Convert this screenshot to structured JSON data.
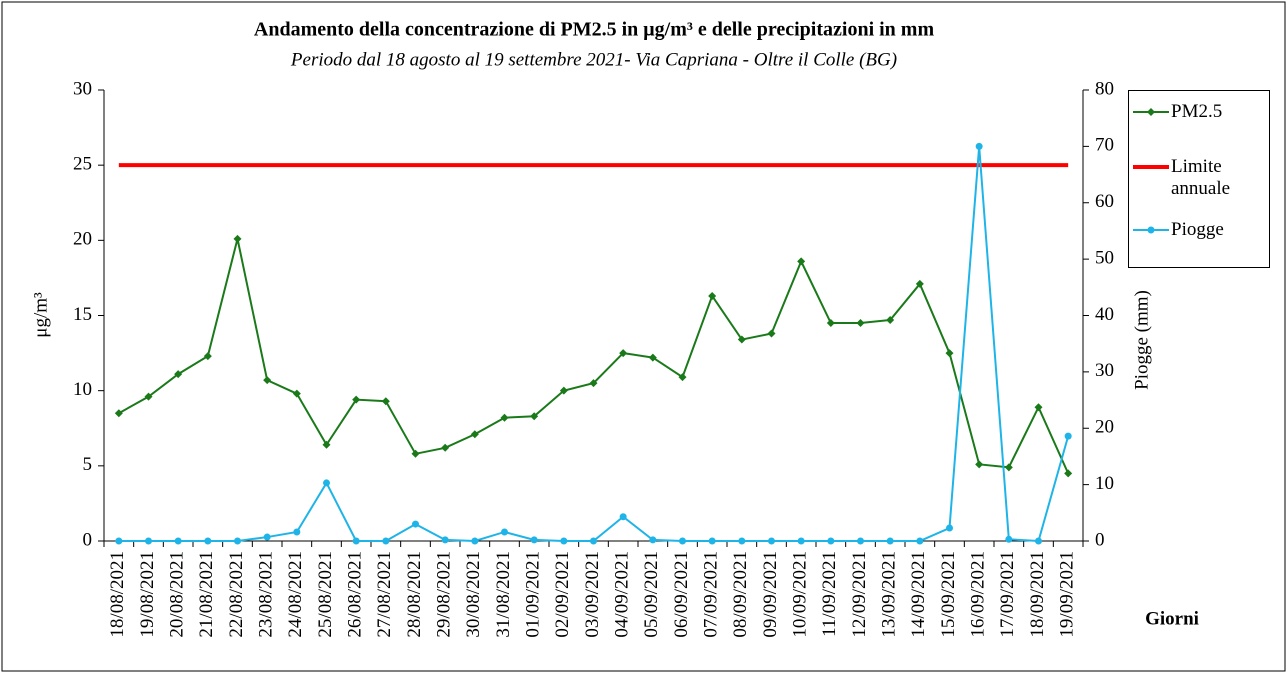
{
  "chart_data": {
    "type": "line",
    "title": "Andamento della concentrazione di PM2.5 in μg/m³ e delle precipitazioni in mm",
    "subtitle": "Periodo dal 18 agosto al 19 settembre 2021- Via Capriana - Oltre il Colle (BG)",
    "ylabel": "μg/m³",
    "y2label": "Piogge (mm)",
    "xlabel": "Giorni",
    "categories": [
      "18/08/2021",
      "19/08/2021",
      "20/08/2021",
      "21/08/2021",
      "22/08/2021",
      "23/08/2021",
      "24/08/2021",
      "25/08/2021",
      "26/08/2021",
      "27/08/2021",
      "28/08/2021",
      "29/08/2021",
      "30/08/2021",
      "31/08/2021",
      "01/09/2021",
      "02/09/2021",
      "03/09/2021",
      "04/09/2021",
      "05/09/2021",
      "06/09/2021",
      "07/09/2021",
      "08/09/2021",
      "09/09/2021",
      "10/09/2021",
      "11/09/2021",
      "12/09/2021",
      "13/09/2021",
      "14/09/2021",
      "15/09/2021",
      "16/09/2021",
      "17/09/2021",
      "18/09/2021",
      "19/09/2021"
    ],
    "series": [
      {
        "name": "PM2.5",
        "color": "#1a7a1a",
        "marker": "diamond",
        "values": [
          8.5,
          9.6,
          11.1,
          12.3,
          20.1,
          10.7,
          9.8,
          6.4,
          9.4,
          9.3,
          5.8,
          6.2,
          7.1,
          8.2,
          8.3,
          10.0,
          10.5,
          12.5,
          12.2,
          10.9,
          16.3,
          13.4,
          13.8,
          18.6,
          14.5,
          14.5,
          14.7,
          17.1,
          12.5,
          5.1,
          4.9,
          8.9,
          4.5
        ]
      },
      {
        "name": "Limite annuale",
        "color": "#ff0000",
        "values": [
          25,
          25,
          25,
          25,
          25,
          25,
          25,
          25,
          25,
          25,
          25,
          25,
          25,
          25,
          25,
          25,
          25,
          25,
          25,
          25,
          25,
          25,
          25,
          25,
          25,
          25,
          25,
          25,
          25,
          25,
          25,
          25,
          25
        ]
      },
      {
        "name": "Piogge",
        "color": "#1fb4e8",
        "marker": "circle",
        "axis": "y2",
        "values": [
          0,
          0,
          0,
          0,
          0,
          0.7,
          1.6,
          10.3,
          0,
          0,
          3.0,
          0.2,
          0,
          1.6,
          0.2,
          0,
          0,
          4.3,
          0.2,
          0,
          0,
          0,
          0,
          0,
          0,
          0,
          0,
          0,
          2.3,
          70.0,
          0.3,
          0,
          18.6
        ]
      }
    ],
    "ylim": [
      0,
      30
    ],
    "yticks": [
      0,
      5,
      10,
      15,
      20,
      25,
      30
    ],
    "y2lim": [
      0,
      80
    ],
    "y2ticks": [
      0,
      10,
      20,
      30,
      40,
      50,
      60,
      70,
      80
    ],
    "grid": false,
    "legend": "right"
  }
}
